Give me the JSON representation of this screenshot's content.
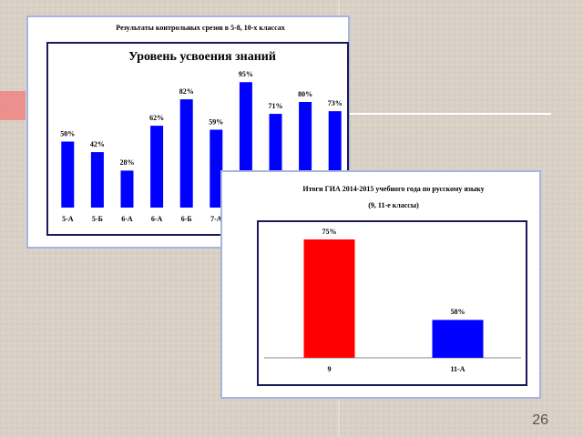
{
  "chart_data": [
    {
      "type": "bar",
      "heading": "Результаты контрольных срезов в 5-8, 10-х классах",
      "title": "Уровень усвоения знаний",
      "categories": [
        "5-А",
        "5-Б",
        "6-А",
        "6-А",
        "6-Б",
        "7-А",
        null,
        null,
        null,
        null
      ],
      "values": [
        50,
        42,
        28,
        62,
        82,
        59,
        95,
        71,
        80,
        73
      ],
      "value_labels": [
        "50%",
        "42%",
        "28%",
        "62%",
        "82%",
        "59%",
        "95%",
        "71%",
        "80%",
        "73%"
      ],
      "color": "#0000ff",
      "ylim": [
        0,
        100
      ]
    },
    {
      "type": "bar",
      "title": "Итоги ГИА 2014-2015 учебного года по русскому языку",
      "subtitle": "(9, 11-е классы)",
      "categories": [
        "9",
        "11-А"
      ],
      "values": [
        75,
        58
      ],
      "value_labels": [
        "75%",
        "58%"
      ],
      "colors": [
        "#ff0000",
        "#0000ff"
      ],
      "ylim": [
        50,
        80
      ]
    }
  ],
  "page_number": "26"
}
